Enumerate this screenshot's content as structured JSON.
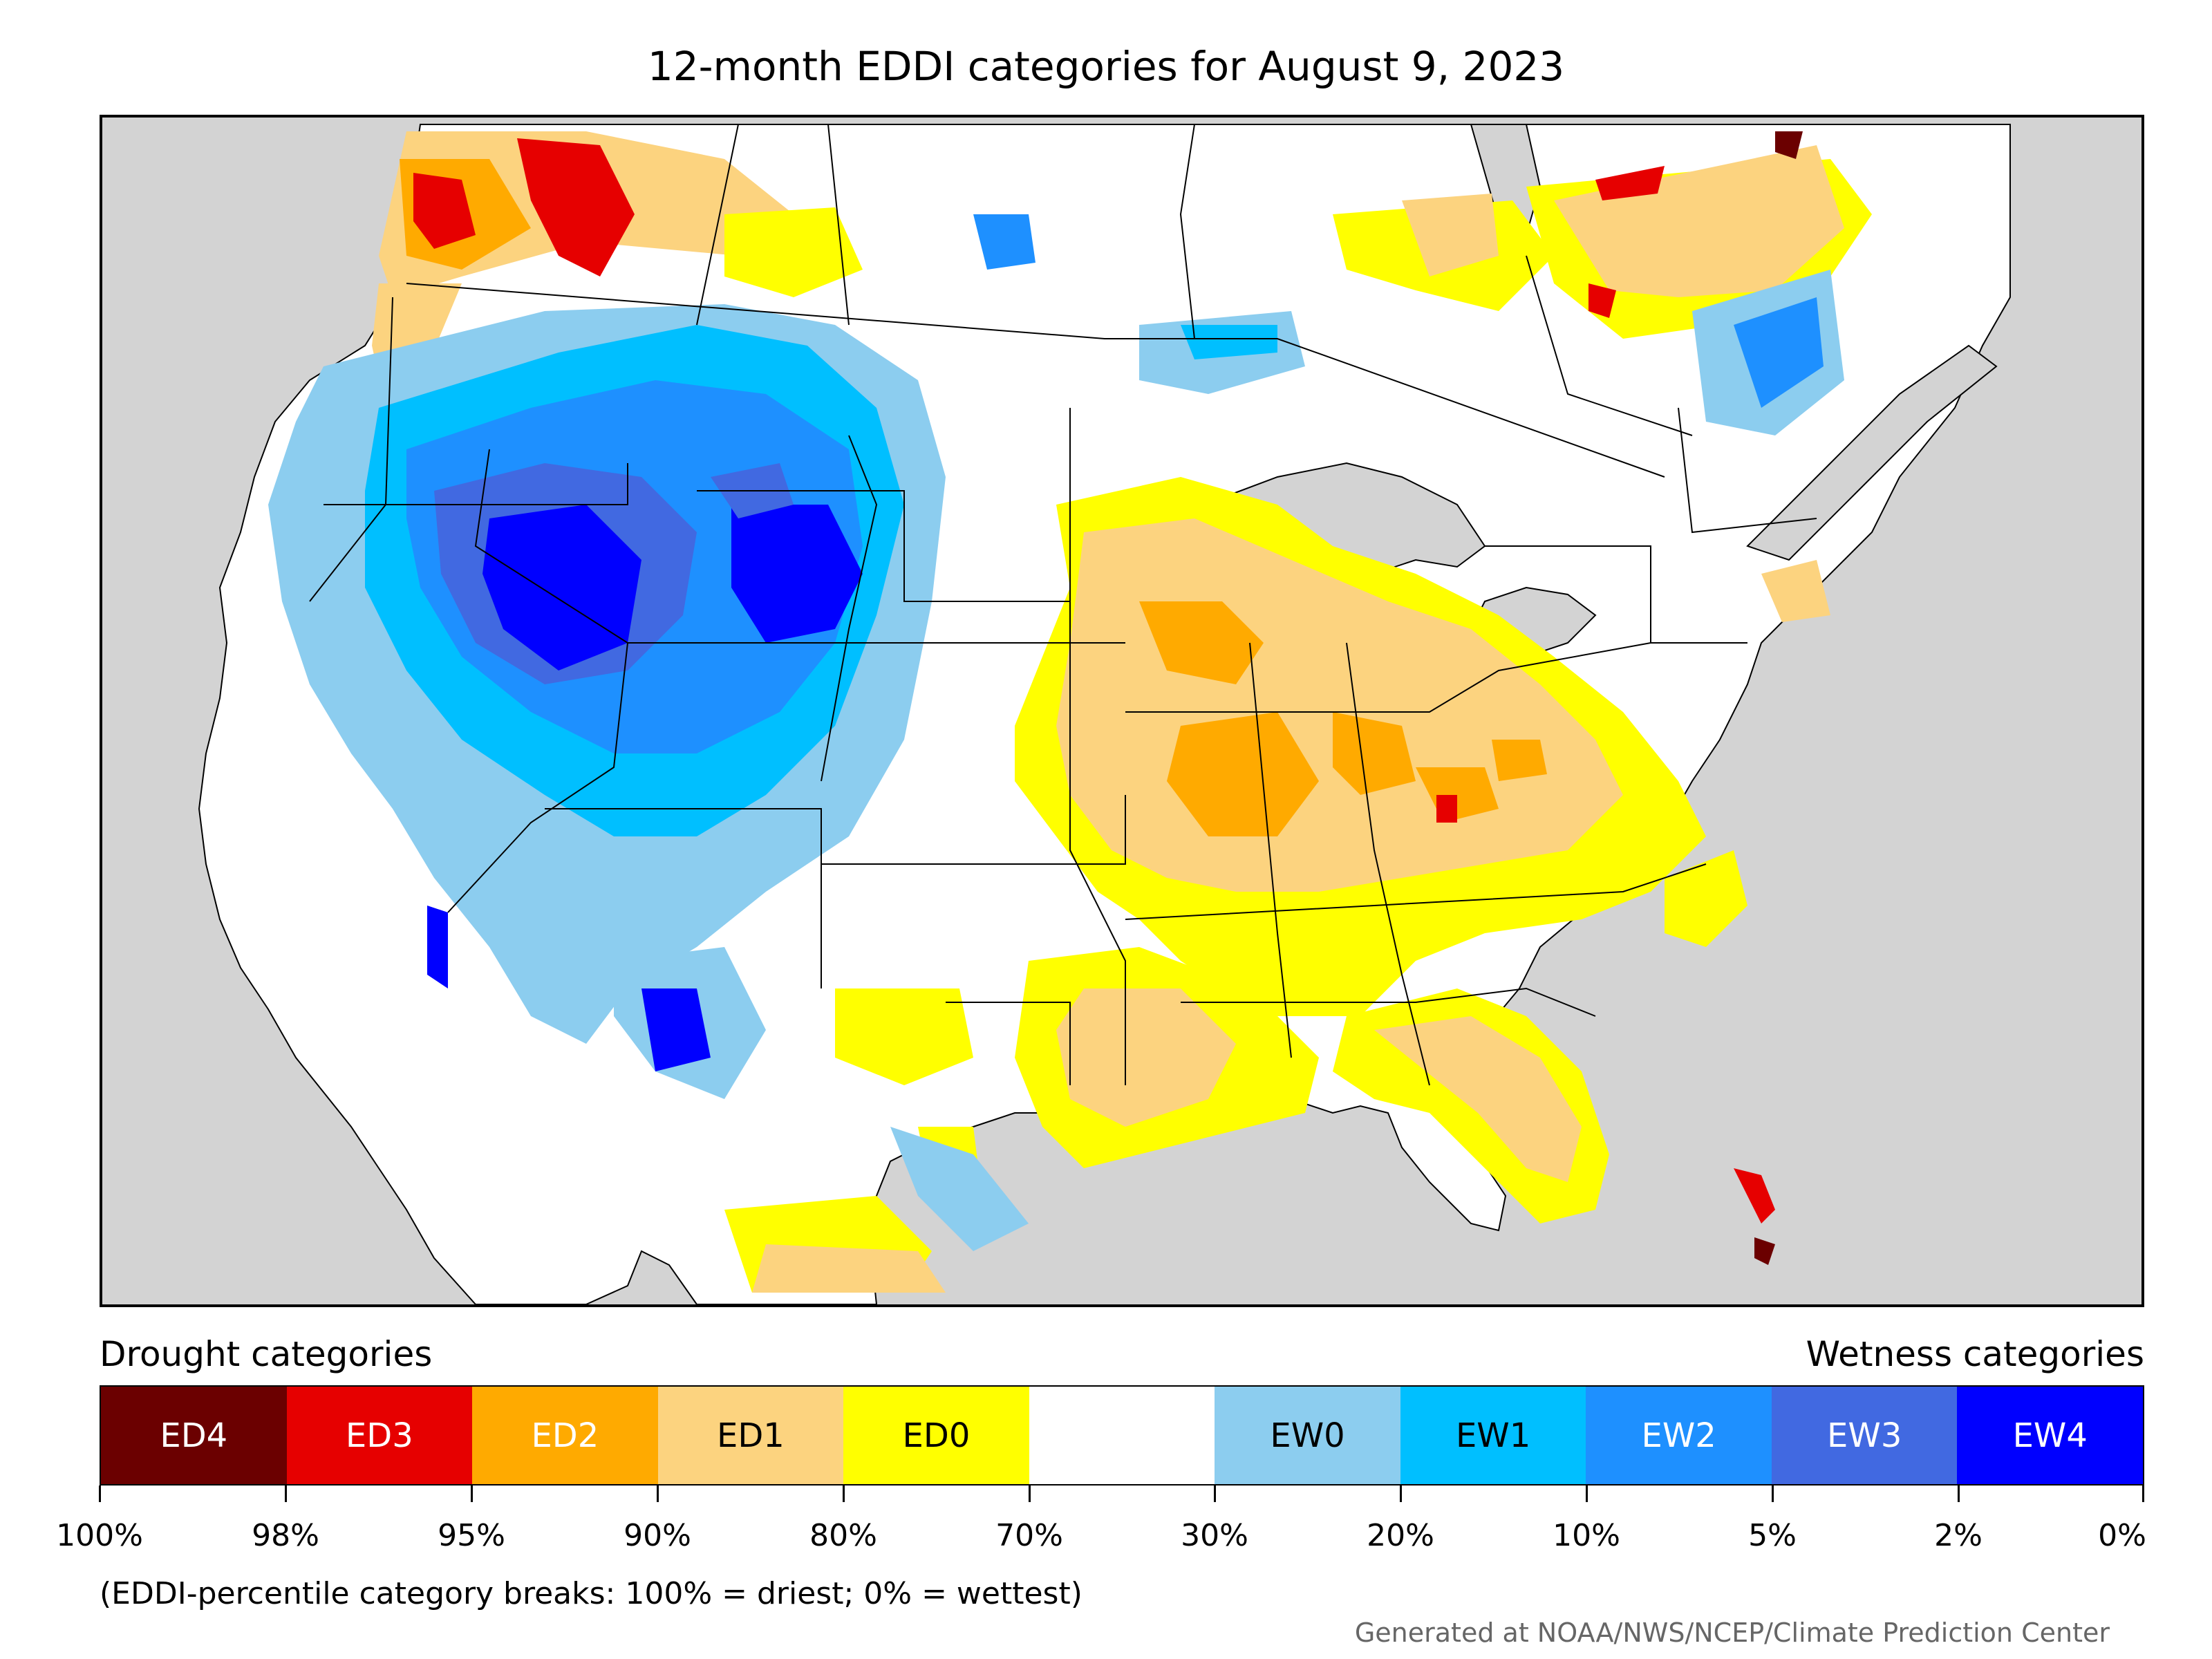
{
  "title": "12-month EDDI categories for August 9, 2023",
  "legend": {
    "drought_label": "Drought categories",
    "wetness_label": "Wetness categories",
    "categories": [
      {
        "label": "ED4",
        "color": "#6b0000",
        "text_color": "#ffffff"
      },
      {
        "label": "ED3",
        "color": "#e60000",
        "text_color": "#ffffff"
      },
      {
        "label": "ED2",
        "color": "#ffaa00",
        "text_color": "#ffffff"
      },
      {
        "label": "ED1",
        "color": "#fcd37f",
        "text_color": "#000000"
      },
      {
        "label": "ED0",
        "color": "#ffff00",
        "text_color": "#000000"
      },
      {
        "label": "",
        "color": "#ffffff",
        "text_color": "#000000"
      },
      {
        "label": "EW0",
        "color": "#8ccdef",
        "text_color": "#000000"
      },
      {
        "label": "EW1",
        "color": "#00bfff",
        "text_color": "#000000"
      },
      {
        "label": "EW2",
        "color": "#1e90ff",
        "text_color": "#ffffff"
      },
      {
        "label": "EW3",
        "color": "#4169e1",
        "text_color": "#ffffff"
      },
      {
        "label": "EW4",
        "color": "#0000ff",
        "text_color": "#ffffff"
      }
    ],
    "tick_labels": [
      "100%",
      "98%",
      "95%",
      "90%",
      "80%",
      "70%",
      "30%",
      "20%",
      "10%",
      "5%",
      "2%",
      "0%"
    ]
  },
  "note": "(EDDI-percentile category breaks: 100% = driest; 0% = wettest)",
  "credit": "Generated at NOAA/NWS/NCEP/Climate Prediction Center",
  "map_colors": {
    "ocean": "#d3d3d3",
    "land": "#ffffff",
    "border": "#000000"
  }
}
